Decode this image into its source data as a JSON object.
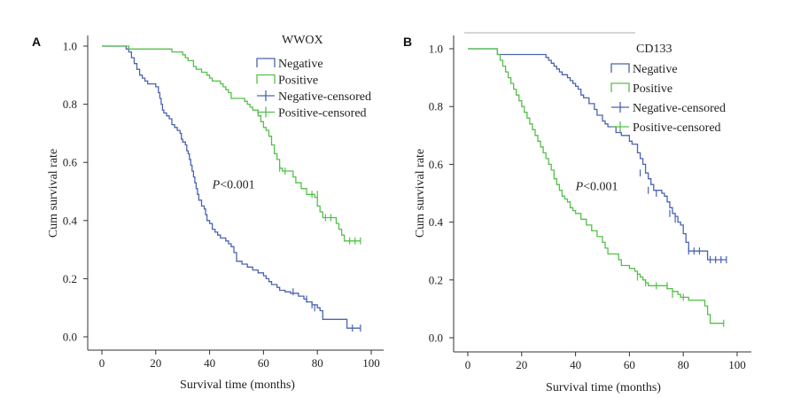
{
  "colors": {
    "negative": "#4a64b0",
    "positive": "#55c04a",
    "axis": "#333333"
  },
  "chart_data": [
    {
      "panel": "A",
      "type": "line",
      "title": "WWOX",
      "xlabel": "Survival time (months)",
      "ylabel": "Cum survival rate",
      "xlim": [
        -3,
        102
      ],
      "ylim": [
        -0.05,
        1.05
      ],
      "xticks": [
        0,
        20,
        40,
        60,
        80,
        100
      ],
      "yticks": [
        0.0,
        0.2,
        0.4,
        0.6,
        0.8,
        1.0
      ],
      "ytick_labels": [
        "0.0",
        "0.2",
        "0.4",
        "0.6",
        "0.8",
        "1.0"
      ],
      "annotation": {
        "p": "P",
        "rest": "<0.001",
        "x": 41,
        "y": 0.51
      },
      "legend": [
        "Negative",
        "Positive",
        "Negative-censored",
        "Positive-censored"
      ],
      "series": [
        {
          "name": "Negative",
          "color": "negative",
          "points": [
            [
              0,
              1.0
            ],
            [
              8,
              1.0
            ],
            [
              9,
              0.99
            ],
            [
              10,
              0.98
            ],
            [
              11,
              0.96
            ],
            [
              12,
              0.94
            ],
            [
              13,
              0.92
            ],
            [
              14,
              0.9
            ],
            [
              15,
              0.89
            ],
            [
              16,
              0.88
            ],
            [
              17,
              0.87
            ],
            [
              20,
              0.86
            ],
            [
              21,
              0.84
            ],
            [
              21.5,
              0.82
            ],
            [
              22,
              0.8
            ],
            [
              22.5,
              0.78
            ],
            [
              23,
              0.77
            ],
            [
              24,
              0.76
            ],
            [
              25,
              0.75
            ],
            [
              26,
              0.73
            ],
            [
              27,
              0.72
            ],
            [
              28,
              0.71
            ],
            [
              29,
              0.7
            ],
            [
              29.5,
              0.68
            ],
            [
              30,
              0.67
            ],
            [
              31,
              0.66
            ],
            [
              31.5,
              0.64
            ],
            [
              32,
              0.63
            ],
            [
              32.5,
              0.61
            ],
            [
              33,
              0.59
            ],
            [
              33.5,
              0.57
            ],
            [
              34,
              0.55
            ],
            [
              34.5,
              0.53
            ],
            [
              35,
              0.51
            ],
            [
              35.5,
              0.49
            ],
            [
              36,
              0.47
            ],
            [
              37,
              0.45
            ],
            [
              38,
              0.44
            ],
            [
              38.5,
              0.42
            ],
            [
              39,
              0.4
            ],
            [
              40,
              0.39
            ],
            [
              41,
              0.37
            ],
            [
              42,
              0.36
            ],
            [
              43,
              0.35
            ],
            [
              44,
              0.34
            ],
            [
              46,
              0.33
            ],
            [
              47,
              0.32
            ],
            [
              48,
              0.31
            ],
            [
              49,
              0.29
            ],
            [
              50,
              0.26
            ],
            [
              52,
              0.25
            ],
            [
              54,
              0.24
            ],
            [
              56,
              0.23
            ],
            [
              58,
              0.22
            ],
            [
              60,
              0.21
            ],
            [
              61,
              0.2
            ],
            [
              62,
              0.19
            ],
            [
              63,
              0.18
            ],
            [
              65,
              0.17
            ],
            [
              66,
              0.16
            ],
            [
              68,
              0.155
            ],
            [
              70,
              0.15
            ],
            [
              73,
              0.14
            ],
            [
              75,
              0.13
            ],
            [
              76,
              0.12
            ],
            [
              78,
              0.11
            ],
            [
              80,
              0.1
            ],
            [
              81,
              0.09
            ],
            [
              82,
              0.06
            ],
            [
              90,
              0.06
            ],
            [
              91,
              0.03
            ],
            [
              96,
              0.03
            ]
          ],
          "censored": [
            [
              71,
              0.155
            ],
            [
              76,
              0.13
            ],
            [
              78,
              0.11
            ],
            [
              79,
              0.1
            ],
            [
              93,
              0.03
            ],
            [
              96,
              0.03
            ]
          ]
        },
        {
          "name": "Positive",
          "color": "positive",
          "points": [
            [
              0,
              1.0
            ],
            [
              9,
              1.0
            ],
            [
              10,
              0.99
            ],
            [
              24,
              0.99
            ],
            [
              26,
              0.98
            ],
            [
              30,
              0.97
            ],
            [
              31,
              0.96
            ],
            [
              32,
              0.95
            ],
            [
              34,
              0.93
            ],
            [
              35,
              0.92
            ],
            [
              37,
              0.91
            ],
            [
              39,
              0.9
            ],
            [
              40,
              0.89
            ],
            [
              41,
              0.88
            ],
            [
              44,
              0.87
            ],
            [
              45,
              0.86
            ],
            [
              46,
              0.85
            ],
            [
              47,
              0.84
            ],
            [
              48,
              0.82
            ],
            [
              53,
              0.81
            ],
            [
              54,
              0.8
            ],
            [
              55,
              0.79
            ],
            [
              56,
              0.78
            ],
            [
              58,
              0.76
            ],
            [
              59,
              0.74
            ],
            [
              60,
              0.72
            ],
            [
              61,
              0.71
            ],
            [
              62,
              0.69
            ],
            [
              63,
              0.66
            ],
            [
              64,
              0.63
            ],
            [
              65,
              0.61
            ],
            [
              66,
              0.58
            ],
            [
              67,
              0.57
            ],
            [
              71,
              0.55
            ],
            [
              72,
              0.53
            ],
            [
              74,
              0.51
            ],
            [
              76,
              0.49
            ],
            [
              79,
              0.48
            ],
            [
              80,
              0.45
            ],
            [
              81,
              0.43
            ],
            [
              82,
              0.41
            ],
            [
              87,
              0.39
            ],
            [
              88,
              0.37
            ],
            [
              89,
              0.35
            ],
            [
              90,
              0.33
            ],
            [
              96,
              0.33
            ]
          ],
          "censored": [
            [
              66,
              0.58
            ],
            [
              68,
              0.57
            ],
            [
              78,
              0.49
            ],
            [
              80,
              0.49
            ],
            [
              83,
              0.41
            ],
            [
              85,
              0.41
            ],
            [
              92,
              0.33
            ],
            [
              94,
              0.33
            ],
            [
              96,
              0.33
            ]
          ]
        }
      ]
    },
    {
      "panel": "B",
      "type": "line",
      "title": "CD133",
      "xlabel": "Survival time (months)",
      "ylabel": "Cum survival rate",
      "xlim": [
        -3,
        104
      ],
      "ylim": [
        -0.03,
        1.05
      ],
      "xticks": [
        0,
        20,
        40,
        60,
        80,
        100
      ],
      "yticks": [
        0.0,
        0.2,
        0.4,
        0.6,
        0.8,
        1.0
      ],
      "ytick_labels": [
        "0.0",
        "0.2",
        "0.4",
        "0.6",
        "0.8",
        "1.0"
      ],
      "annotation": {
        "p": "P",
        "rest": "<0.001",
        "x": 40,
        "y": 0.51
      },
      "legend": [
        "Negative",
        "Positive",
        "Negative-censored",
        "Positive-censored"
      ],
      "series": [
        {
          "name": "Negative",
          "color": "negative",
          "points": [
            [
              0,
              1.0
            ],
            [
              10,
              1.0
            ],
            [
              11,
              0.98
            ],
            [
              28,
              0.98
            ],
            [
              29,
              0.97
            ],
            [
              30,
              0.96
            ],
            [
              31,
              0.95
            ],
            [
              32,
              0.94
            ],
            [
              33,
              0.93
            ],
            [
              34,
              0.92
            ],
            [
              35,
              0.91
            ],
            [
              37,
              0.9
            ],
            [
              38,
              0.89
            ],
            [
              39,
              0.88
            ],
            [
              40,
              0.87
            ],
            [
              41,
              0.86
            ],
            [
              42,
              0.84
            ],
            [
              43,
              0.83
            ],
            [
              45,
              0.81
            ],
            [
              47,
              0.79
            ],
            [
              48,
              0.77
            ],
            [
              50,
              0.75
            ],
            [
              51,
              0.74
            ],
            [
              52,
              0.73
            ],
            [
              55,
              0.71
            ],
            [
              57,
              0.7
            ],
            [
              60,
              0.68
            ],
            [
              61,
              0.67
            ],
            [
              63,
              0.64
            ],
            [
              64,
              0.62
            ],
            [
              65,
              0.6
            ],
            [
              66,
              0.57
            ],
            [
              67,
              0.55
            ],
            [
              68,
              0.53
            ],
            [
              69,
              0.51
            ],
            [
              72,
              0.5
            ],
            [
              73,
              0.49
            ],
            [
              74,
              0.47
            ],
            [
              75,
              0.45
            ],
            [
              76,
              0.43
            ],
            [
              77,
              0.42
            ],
            [
              78,
              0.4
            ],
            [
              79,
              0.39
            ],
            [
              80,
              0.36
            ],
            [
              81,
              0.33
            ],
            [
              82,
              0.3
            ],
            [
              88,
              0.3
            ],
            [
              89,
              0.27
            ],
            [
              96,
              0.27
            ]
          ],
          "censored": [
            [
              64,
              0.57
            ],
            [
              67,
              0.51
            ],
            [
              70,
              0.5
            ],
            [
              75,
              0.43
            ],
            [
              77,
              0.41
            ],
            [
              82,
              0.3
            ],
            [
              84,
              0.3
            ],
            [
              86,
              0.3
            ],
            [
              90,
              0.27
            ],
            [
              92,
              0.27
            ],
            [
              94,
              0.27
            ],
            [
              96,
              0.27
            ]
          ]
        },
        {
          "name": "Positive",
          "color": "positive",
          "points": [
            [
              0,
              1.0
            ],
            [
              9,
              1.0
            ],
            [
              11,
              0.98
            ],
            [
              12,
              0.96
            ],
            [
              13,
              0.94
            ],
            [
              14,
              0.92
            ],
            [
              15,
              0.9
            ],
            [
              16,
              0.88
            ],
            [
              17,
              0.86
            ],
            [
              18,
              0.84
            ],
            [
              19,
              0.82
            ],
            [
              20,
              0.8
            ],
            [
              21,
              0.78
            ],
            [
              22,
              0.76
            ],
            [
              23,
              0.74
            ],
            [
              24,
              0.72
            ],
            [
              25,
              0.7
            ],
            [
              26,
              0.68
            ],
            [
              27,
              0.66
            ],
            [
              28,
              0.64
            ],
            [
              29,
              0.62
            ],
            [
              30,
              0.6
            ],
            [
              31,
              0.58
            ],
            [
              32,
              0.55
            ],
            [
              33,
              0.53
            ],
            [
              34,
              0.51
            ],
            [
              35,
              0.49
            ],
            [
              36,
              0.48
            ],
            [
              37,
              0.47
            ],
            [
              38,
              0.45
            ],
            [
              39,
              0.44
            ],
            [
              40,
              0.43
            ],
            [
              42,
              0.41
            ],
            [
              44,
              0.39
            ],
            [
              46,
              0.37
            ],
            [
              48,
              0.35
            ],
            [
              50,
              0.33
            ],
            [
              51,
              0.31
            ],
            [
              52,
              0.29
            ],
            [
              56,
              0.27
            ],
            [
              57,
              0.25
            ],
            [
              60,
              0.24
            ],
            [
              62,
              0.23
            ],
            [
              63,
              0.22
            ],
            [
              64,
              0.21
            ],
            [
              65,
              0.2
            ],
            [
              66,
              0.19
            ],
            [
              67,
              0.18
            ],
            [
              74,
              0.17
            ],
            [
              76,
              0.16
            ],
            [
              78,
              0.15
            ],
            [
              79,
              0.14
            ],
            [
              82,
              0.13
            ],
            [
              88,
              0.11
            ],
            [
              89,
              0.08
            ],
            [
              90,
              0.05
            ],
            [
              95,
              0.05
            ]
          ],
          "censored": [
            [
              63,
              0.21
            ],
            [
              66,
              0.19
            ],
            [
              70,
              0.18
            ],
            [
              74,
              0.18
            ],
            [
              76,
              0.15
            ],
            [
              80,
              0.14
            ],
            [
              95,
              0.05
            ]
          ]
        }
      ]
    }
  ]
}
